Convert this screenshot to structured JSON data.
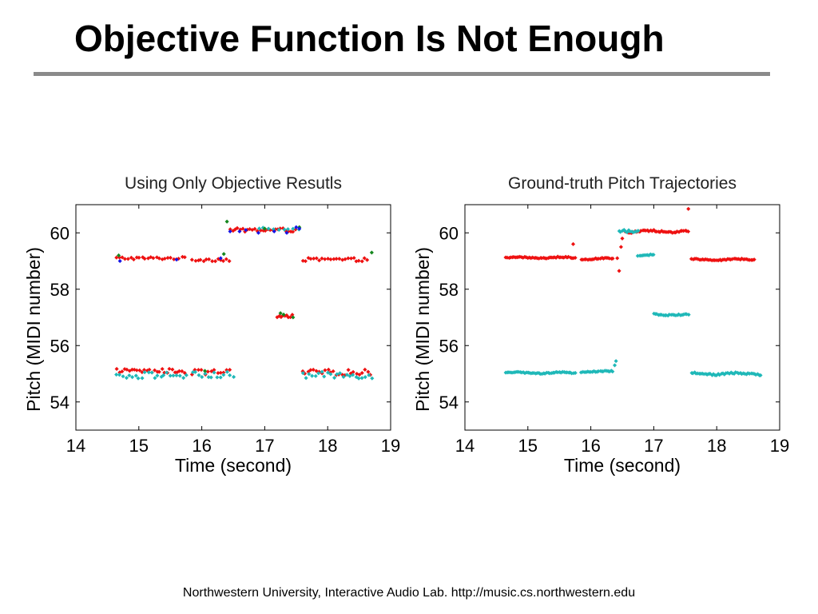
{
  "slide": {
    "title": "Objective Function Is Not Enough",
    "footer": "Northwestern University, Interactive Audio Lab. http://music.cs.northwestern.edu"
  },
  "colors": {
    "red": "#ee1111",
    "cyan": "#1fb8b8",
    "green": "#14871e",
    "blue": "#1515e6",
    "rule": "#8a8a8a"
  },
  "chart_data": [
    {
      "type": "scatter",
      "title": "Using Only Objective Resutls",
      "xlabel": "Time (second)",
      "ylabel": "Pitch (MIDI number)",
      "xlim": [
        14,
        19
      ],
      "ylim": [
        53,
        61
      ],
      "xticks": [
        14,
        15,
        16,
        17,
        18,
        19
      ],
      "yticks": [
        54,
        56,
        58,
        60
      ],
      "grid": false,
      "series": [
        {
          "color": "red",
          "segments": [
            {
              "x": [
                14.65,
                15.75
              ],
              "y": 59.1,
              "step": 0.045,
              "jitter": 0.05
            },
            {
              "x": [
                15.85,
                16.45
              ],
              "y": 59.05,
              "step": 0.045,
              "jitter": 0.06
            },
            {
              "x": [
                16.45,
                17.5
              ],
              "y": 60.1,
              "step": 0.04,
              "jitter": 0.07
            },
            {
              "x": [
                17.6,
                18.65
              ],
              "y": 59.05,
              "step": 0.045,
              "jitter": 0.06
            },
            {
              "x": [
                14.65,
                15.75
              ],
              "y": 55.1,
              "step": 0.04,
              "jitter": 0.08
            },
            {
              "x": [
                15.85,
                16.45
              ],
              "y": 55.05,
              "step": 0.05,
              "jitter": 0.1
            },
            {
              "x": [
                17.6,
                18.7
              ],
              "y": 55.05,
              "step": 0.045,
              "jitter": 0.1
            },
            {
              "x": [
                17.2,
                17.45
              ],
              "y": 57.05,
              "step": 0.03,
              "jitter": 0.05
            }
          ]
        },
        {
          "color": "cyan",
          "segments": [
            {
              "x": [
                14.65,
                15.75
              ],
              "y": 54.95,
              "step": 0.05,
              "jitter": 0.12
            },
            {
              "x": [
                15.85,
                16.5
              ],
              "y": 54.95,
              "step": 0.05,
              "jitter": 0.12
            },
            {
              "x": [
                17.6,
                18.7
              ],
              "y": 54.95,
              "step": 0.05,
              "jitter": 0.12
            },
            {
              "x": [
                16.9,
                17.6
              ],
              "y": 60.15,
              "step": 0.08,
              "jitter": 0.05
            }
          ]
        },
        {
          "color": "green",
          "points": [
            [
              14.68,
              59.2
            ],
            [
              16.4,
              60.4
            ],
            [
              16.35,
              59.25
            ],
            [
              17.3,
              57.1
            ],
            [
              17.45,
              57.0
            ],
            [
              17.25,
              57.15
            ],
            [
              18.7,
              59.3
            ],
            [
              17.55,
              60.2
            ],
            [
              17.0,
              60.15
            ],
            [
              16.05,
              55.1
            ]
          ]
        },
        {
          "color": "blue",
          "points": [
            [
              14.7,
              59.0
            ],
            [
              15.6,
              59.05
            ],
            [
              16.45,
              60.05
            ],
            [
              16.7,
              60.1
            ],
            [
              16.9,
              60.0
            ],
            [
              17.15,
              60.05
            ],
            [
              17.5,
              60.2
            ],
            [
              17.55,
              60.15
            ],
            [
              16.3,
              59.1
            ],
            [
              16.6,
              60.05
            ],
            [
              17.35,
              60.0
            ]
          ]
        }
      ]
    },
    {
      "type": "scatter",
      "title": "Ground-truth Pitch Trajectories",
      "xlabel": "Time (second)",
      "ylabel": "Pitch (MIDI number)",
      "xlim": [
        14,
        19
      ],
      "ylim": [
        53,
        61
      ],
      "xticks": [
        14,
        15,
        16,
        17,
        18,
        19
      ],
      "yticks": [
        54,
        56,
        58,
        60
      ],
      "grid": false,
      "series": [
        {
          "color": "red",
          "segments": [
            {
              "x": [
                14.65,
                15.75
              ],
              "y": 59.12,
              "step": 0.025,
              "jitter": 0.02
            },
            {
              "x": [
                15.85,
                16.35
              ],
              "y": 59.08,
              "step": 0.025,
              "jitter": 0.02
            },
            {
              "x": [
                16.55,
                17.55
              ],
              "y": 60.05,
              "step": 0.025,
              "jitter": 0.03
            },
            {
              "x": [
                17.6,
                18.6
              ],
              "y": 59.05,
              "step": 0.025,
              "jitter": 0.02
            }
          ],
          "points": [
            [
              15.72,
              59.6
            ],
            [
              16.45,
              58.65
            ],
            [
              16.48,
              59.5
            ],
            [
              17.55,
              60.85
            ],
            [
              16.42,
              59.1
            ],
            [
              16.5,
              59.8
            ]
          ]
        },
        {
          "color": "cyan",
          "segments": [
            {
              "x": [
                14.65,
                15.75
              ],
              "y": 55.03,
              "step": 0.025,
              "jitter": 0.02
            },
            {
              "x": [
                15.85,
                16.35
              ],
              "y": 55.08,
              "step": 0.025,
              "jitter": 0.02
            },
            {
              "x": [
                17.6,
                18.7
              ],
              "y": 55.0,
              "step": 0.025,
              "jitter": 0.03
            },
            {
              "x": [
                17.0,
                17.55
              ],
              "y": 57.1,
              "step": 0.025,
              "jitter": 0.02
            },
            {
              "x": [
                16.75,
                17.0
              ],
              "y": 59.2,
              "step": 0.025,
              "jitter": 0.02
            },
            {
              "x": [
                16.45,
                16.75
              ],
              "y": 60.1,
              "step": 0.025,
              "jitter": 0.05
            }
          ],
          "points": [
            [
              16.4,
              55.45
            ],
            [
              16.38,
              55.3
            ]
          ]
        }
      ]
    }
  ]
}
